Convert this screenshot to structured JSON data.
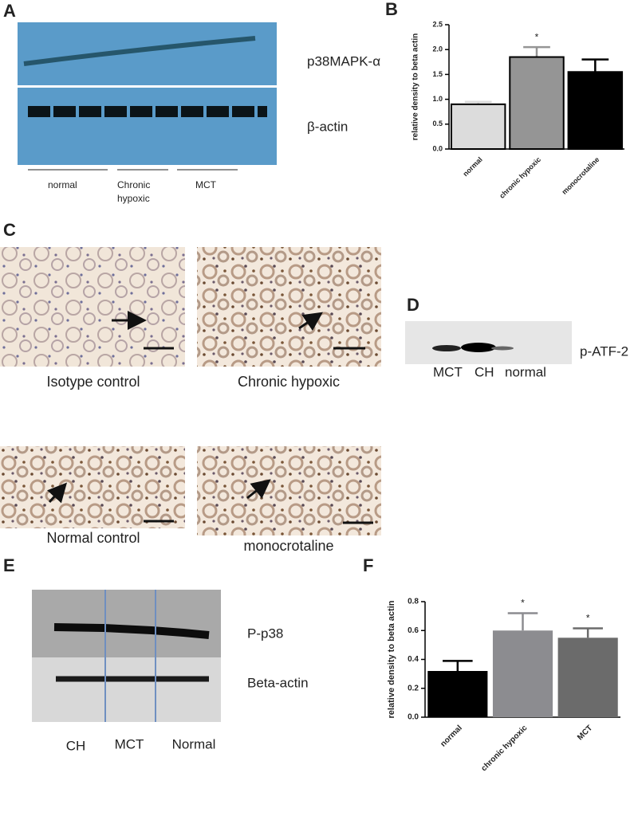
{
  "panels": {
    "A": {
      "letter": "A",
      "blot_labels": [
        "p38MAPK-α",
        "β-actin"
      ],
      "groups": [
        "normal",
        "Chronic",
        "hypoxic",
        "MCT"
      ]
    },
    "B": {
      "letter": "B"
    },
    "C": {
      "letter": "C",
      "captions": [
        "Isotype control",
        "Chronic hypoxic",
        "Normal control",
        "monocrotaline"
      ]
    },
    "D": {
      "letter": "D",
      "blot_label": "p-ATF-2",
      "lanes": [
        "MCT",
        "CH",
        "normal"
      ]
    },
    "E": {
      "letter": "E",
      "blot_labels": [
        "P-p38",
        "Beta-actin"
      ],
      "lanes": [
        "CH",
        "MCT",
        "Normal"
      ]
    },
    "F": {
      "letter": "F"
    }
  },
  "chart_data": [
    {
      "type": "bar",
      "y_label": "relative density to beta actin",
      "categories": [
        "normal",
        "chronic hypoxic",
        "monocrotaline"
      ],
      "values": [
        0.9,
        1.85,
        1.55
      ],
      "errors": [
        0.05,
        0.2,
        0.25
      ],
      "colors": [
        "#dcdcdc",
        "#959595",
        "#000000"
      ],
      "outline": "#000000",
      "significance": [
        null,
        "*",
        null
      ],
      "ylim": [
        0,
        2.5
      ],
      "yticks": [
        {
          "value": 0,
          "label": "0.0"
        },
        0.5,
        {
          "value": 1,
          "label": "1.0"
        },
        1.5,
        {
          "value": 2,
          "label": "2.0"
        },
        2.5
      ]
    },
    {
      "type": "bar",
      "y_label": "relative density to beta actin",
      "categories": [
        "normal",
        "chronic hypoxic",
        "MCT"
      ],
      "values": [
        0.32,
        0.6,
        0.55
      ],
      "errors": [
        0.07,
        0.12,
        0.065
      ],
      "colors": [
        "#000000",
        "#8c8c90",
        "#6b6b6b"
      ],
      "significance": [
        null,
        "*",
        "*"
      ],
      "ylim": [
        0,
        0.8
      ],
      "yticks": [
        {
          "value": 0,
          "label": "0.0"
        },
        0.2,
        0.4,
        0.6,
        0.8
      ]
    }
  ]
}
